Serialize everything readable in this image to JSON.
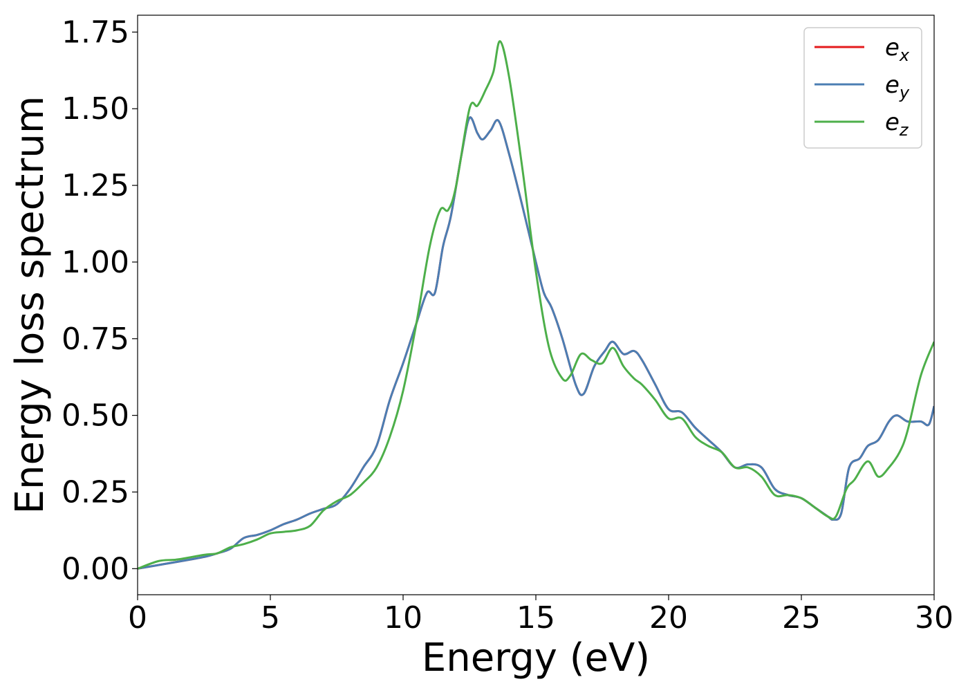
{
  "chart_data": {
    "type": "line",
    "title": "",
    "xlabel": "Energy (eV)",
    "ylabel": "Energy loss spectrum",
    "xlim": [
      0,
      30
    ],
    "ylim": [
      -0.085,
      1.805
    ],
    "xticks": [
      0,
      5,
      10,
      15,
      20,
      25,
      30
    ],
    "xtick_labels": [
      "0",
      "5",
      "10",
      "15",
      "20",
      "25",
      "30"
    ],
    "yticks": [
      0,
      0.25,
      0.5,
      0.75,
      1.0,
      1.25,
      1.5,
      1.75
    ],
    "ytick_labels": [
      "0.00",
      "0.25",
      "0.50",
      "0.75",
      "1.00",
      "1.25",
      "1.50",
      "1.75"
    ],
    "grid": false,
    "legend_position": "top-right",
    "series": [
      {
        "name": "e",
        "subscript": "x",
        "color": "#e41a1c",
        "x": [
          0,
          1,
          2,
          2.6,
          3,
          3.5,
          4,
          4.5,
          5,
          5.5,
          6,
          6.5,
          7,
          7.5,
          8,
          8.5,
          9,
          9.5,
          10,
          10.5,
          10.9,
          11.2,
          11.5,
          11.8,
          12.2,
          12.5,
          12.8,
          13,
          13.3,
          13.6,
          14,
          14.5,
          15,
          15.3,
          15.6,
          16,
          16.5,
          16.8,
          17.2,
          17.6,
          17.9,
          18.3,
          18.7,
          19,
          19.5,
          20,
          20.5,
          21,
          21.5,
          22,
          22.5,
          23,
          23.5,
          24,
          24.5,
          25,
          25.5,
          26,
          26.2,
          26.5,
          26.8,
          27.2,
          27.5,
          27.9,
          28.3,
          28.6,
          29,
          29.5,
          29.8,
          30
        ],
        "values": [
          0.0,
          0.015,
          0.03,
          0.04,
          0.05,
          0.065,
          0.1,
          0.11,
          0.125,
          0.145,
          0.16,
          0.18,
          0.195,
          0.21,
          0.26,
          0.33,
          0.4,
          0.55,
          0.67,
          0.8,
          0.9,
          0.9,
          1.05,
          1.15,
          1.35,
          1.47,
          1.42,
          1.4,
          1.43,
          1.46,
          1.35,
          1.18,
          1.0,
          0.9,
          0.85,
          0.75,
          0.6,
          0.57,
          0.66,
          0.71,
          0.74,
          0.7,
          0.71,
          0.68,
          0.6,
          0.52,
          0.51,
          0.46,
          0.42,
          0.38,
          0.33,
          0.34,
          0.33,
          0.26,
          0.24,
          0.23,
          0.2,
          0.17,
          0.16,
          0.18,
          0.33,
          0.36,
          0.4,
          0.42,
          0.48,
          0.5,
          0.48,
          0.48,
          0.47,
          0.53
        ]
      },
      {
        "name": "e",
        "subscript": "y",
        "color": "#4b7eb3",
        "x": [
          0,
          1,
          2,
          2.6,
          3,
          3.5,
          4,
          4.5,
          5,
          5.5,
          6,
          6.5,
          7,
          7.5,
          8,
          8.5,
          9,
          9.5,
          10,
          10.5,
          10.9,
          11.2,
          11.5,
          11.8,
          12.2,
          12.5,
          12.8,
          13,
          13.3,
          13.6,
          14,
          14.5,
          15,
          15.3,
          15.6,
          16,
          16.5,
          16.8,
          17.2,
          17.6,
          17.9,
          18.3,
          18.7,
          19,
          19.5,
          20,
          20.5,
          21,
          21.5,
          22,
          22.5,
          23,
          23.5,
          24,
          24.5,
          25,
          25.5,
          26,
          26.2,
          26.5,
          26.8,
          27.2,
          27.5,
          27.9,
          28.3,
          28.6,
          29,
          29.5,
          29.8,
          30
        ],
        "values": [
          0.0,
          0.015,
          0.03,
          0.04,
          0.05,
          0.065,
          0.1,
          0.11,
          0.125,
          0.145,
          0.16,
          0.18,
          0.195,
          0.21,
          0.26,
          0.33,
          0.4,
          0.55,
          0.67,
          0.8,
          0.9,
          0.9,
          1.05,
          1.15,
          1.35,
          1.47,
          1.42,
          1.4,
          1.43,
          1.46,
          1.35,
          1.18,
          1.0,
          0.9,
          0.85,
          0.75,
          0.6,
          0.57,
          0.66,
          0.71,
          0.74,
          0.7,
          0.71,
          0.68,
          0.6,
          0.52,
          0.51,
          0.46,
          0.42,
          0.38,
          0.33,
          0.34,
          0.33,
          0.26,
          0.24,
          0.23,
          0.2,
          0.17,
          0.16,
          0.18,
          0.33,
          0.36,
          0.4,
          0.42,
          0.48,
          0.5,
          0.48,
          0.48,
          0.47,
          0.53
        ]
      },
      {
        "name": "e",
        "subscript": "z",
        "color": "#4daf4a",
        "x": [
          0,
          0.8,
          1.5,
          2.5,
          3,
          3.5,
          4,
          4.5,
          5,
          5.5,
          6,
          6.5,
          7,
          7.5,
          8,
          8.5,
          9,
          9.5,
          10,
          10.5,
          11,
          11.4,
          11.7,
          12,
          12.5,
          12.8,
          13.1,
          13.4,
          13.65,
          14,
          14.5,
          15,
          15.5,
          16,
          16.3,
          16.7,
          17.1,
          17.5,
          17.9,
          18.3,
          18.7,
          19,
          19.5,
          20,
          20.5,
          21,
          21.5,
          22,
          22.5,
          23,
          23.5,
          24,
          24.5,
          25,
          25.5,
          26,
          26.3,
          26.7,
          27,
          27.5,
          27.9,
          28.3,
          28.7,
          29,
          29.5,
          30
        ],
        "values": [
          0.0,
          0.025,
          0.03,
          0.045,
          0.05,
          0.07,
          0.08,
          0.095,
          0.115,
          0.12,
          0.125,
          0.14,
          0.19,
          0.22,
          0.24,
          0.28,
          0.33,
          0.43,
          0.58,
          0.8,
          1.05,
          1.17,
          1.17,
          1.25,
          1.5,
          1.51,
          1.56,
          1.62,
          1.72,
          1.6,
          1.3,
          0.97,
          0.72,
          0.62,
          0.63,
          0.7,
          0.68,
          0.67,
          0.72,
          0.66,
          0.62,
          0.6,
          0.55,
          0.49,
          0.49,
          0.43,
          0.4,
          0.38,
          0.33,
          0.33,
          0.3,
          0.24,
          0.24,
          0.23,
          0.2,
          0.17,
          0.17,
          0.26,
          0.29,
          0.35,
          0.3,
          0.33,
          0.38,
          0.45,
          0.63,
          0.74
        ]
      }
    ]
  }
}
